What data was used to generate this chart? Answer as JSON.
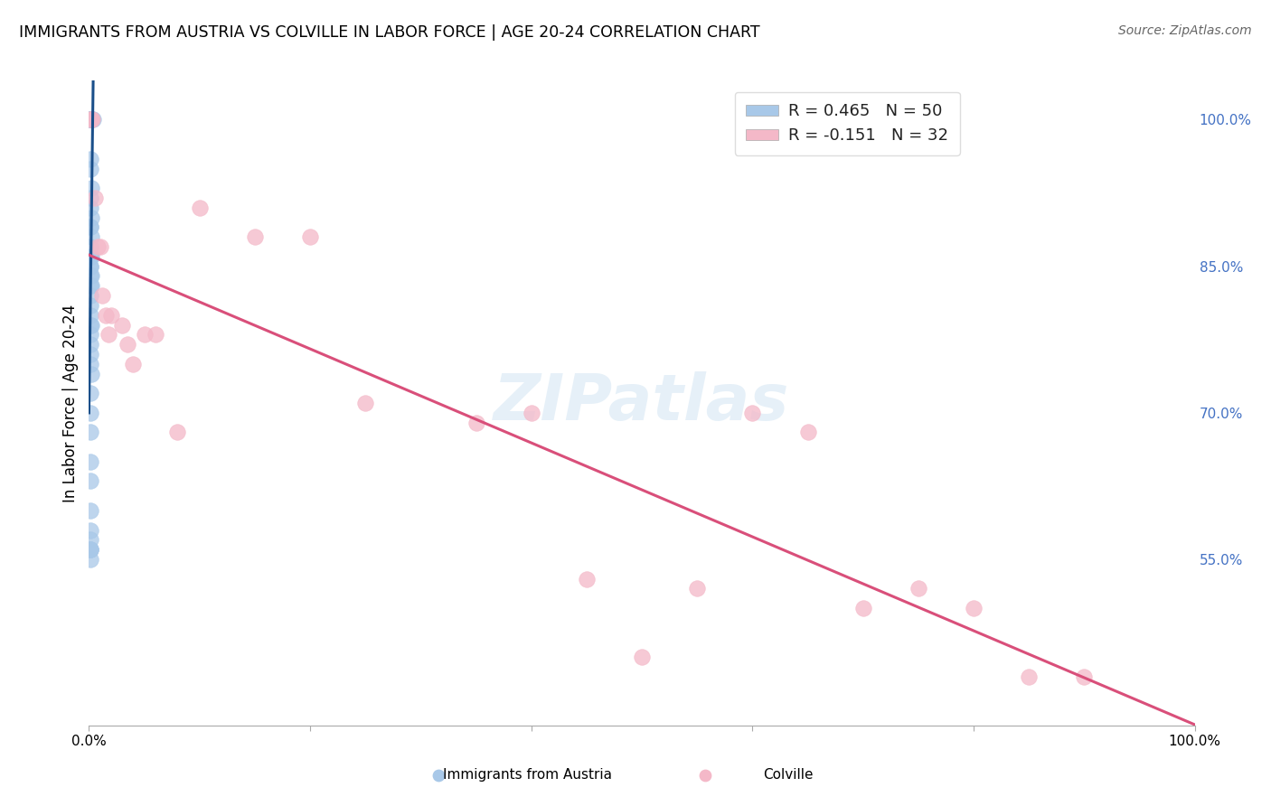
{
  "title": "IMMIGRANTS FROM AUSTRIA VS COLVILLE IN LABOR FORCE | AGE 20-24 CORRELATION CHART",
  "source": "Source: ZipAtlas.com",
  "ylabel": "In Labor Force | Age 20-24",
  "right_yticks": [
    0.55,
    0.7,
    0.85,
    1.0
  ],
  "right_ytick_labels": [
    "55.0%",
    "70.0%",
    "85.0%",
    "100.0%"
  ],
  "legend_line1": "R = 0.465   N = 50",
  "legend_line2": "R = -0.151   N = 32",
  "legend_bottom_blue": "Immigrants from Austria",
  "legend_bottom_pink": "Colville",
  "blue_scatter_color": "#a8c8e8",
  "pink_scatter_color": "#f4b8c8",
  "blue_line_color": "#1a4f8a",
  "pink_line_color": "#d94f7a",
  "watermark_text": "ZIPatlas",
  "austria_x": [
    0.001,
    0.0015,
    0.002,
    0.001,
    0.002,
    0.003,
    0.004,
    0.001,
    0.001,
    0.002,
    0.001,
    0.001,
    0.002,
    0.001,
    0.001,
    0.002,
    0.001,
    0.001,
    0.0025,
    0.001,
    0.002,
    0.001,
    0.001,
    0.001,
    0.002,
    0.001,
    0.001,
    0.002,
    0.001,
    0.0015,
    0.001,
    0.001,
    0.002,
    0.001,
    0.001,
    0.001,
    0.001,
    0.002,
    0.001,
    0.001,
    0.001,
    0.001,
    0.001,
    0.001,
    0.001,
    0.001,
    0.001,
    0.001,
    0.001,
    0.001
  ],
  "austria_y": [
    1.0,
    1.0,
    1.0,
    1.0,
    1.0,
    1.0,
    1.0,
    1.0,
    1.0,
    1.0,
    0.96,
    0.95,
    0.93,
    0.92,
    0.91,
    0.9,
    0.89,
    0.89,
    0.88,
    0.87,
    0.86,
    0.86,
    0.85,
    0.85,
    0.84,
    0.84,
    0.83,
    0.83,
    0.82,
    0.81,
    0.8,
    0.79,
    0.79,
    0.78,
    0.77,
    0.76,
    0.75,
    0.74,
    0.72,
    0.7,
    0.68,
    0.65,
    0.63,
    0.6,
    0.58,
    0.56,
    0.56,
    0.55,
    0.56,
    0.57
  ],
  "colville_x": [
    0.001,
    0.002,
    0.003,
    0.005,
    0.008,
    0.01,
    0.012,
    0.015,
    0.018,
    0.02,
    0.03,
    0.035,
    0.04,
    0.05,
    0.06,
    0.08,
    0.1,
    0.15,
    0.2,
    0.25,
    0.35,
    0.4,
    0.45,
    0.5,
    0.55,
    0.6,
    0.65,
    0.7,
    0.75,
    0.8,
    0.85,
    0.9
  ],
  "colville_y": [
    1.0,
    1.0,
    1.0,
    0.92,
    0.87,
    0.87,
    0.82,
    0.8,
    0.78,
    0.8,
    0.79,
    0.77,
    0.75,
    0.78,
    0.78,
    0.68,
    0.91,
    0.88,
    0.88,
    0.71,
    0.69,
    0.7,
    0.53,
    0.45,
    0.52,
    0.7,
    0.68,
    0.5,
    0.52,
    0.5,
    0.43,
    0.43
  ],
  "xlim": [
    0.0,
    1.0
  ],
  "ylim": [
    0.38,
    1.04
  ],
  "xtick_positions": [
    0.0,
    0.2,
    0.4,
    0.6,
    0.8,
    1.0
  ]
}
